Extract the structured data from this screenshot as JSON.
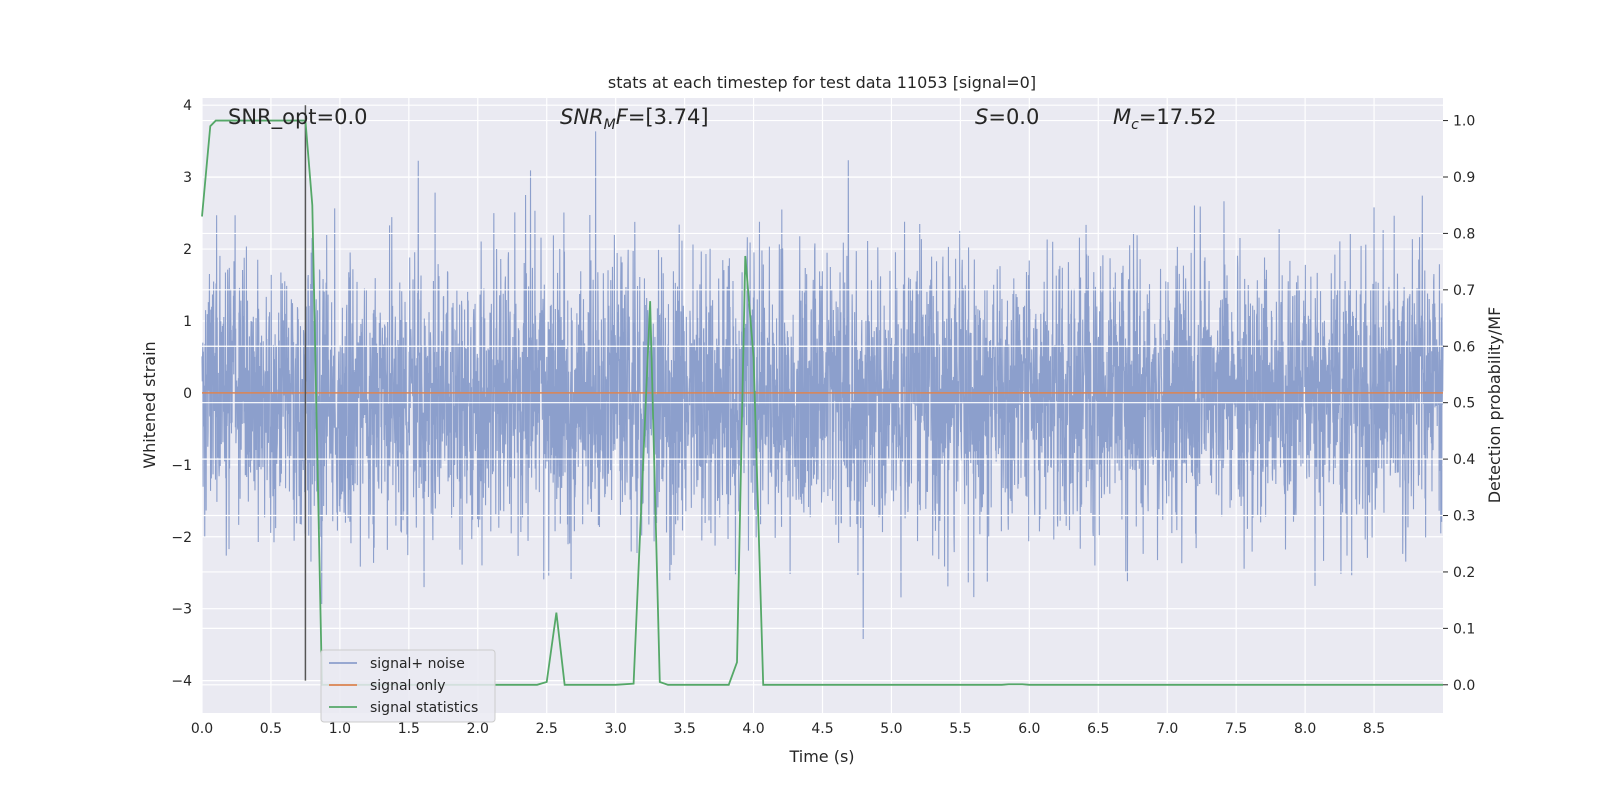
{
  "chart_data": {
    "type": "line",
    "title": "stats at each timestep for test data 11053 [signal=0]",
    "xlabel": "Time (s)",
    "ylabel": "Whitened strain",
    "ylabel_right": "Detection probability/MF",
    "xlim": [
      0.0,
      9.0
    ],
    "ylim": [
      -4.45,
      4.1
    ],
    "ylim_right": [
      -0.05,
      1.04
    ],
    "xticks": [
      "0.0",
      "0.5",
      "1.0",
      "1.5",
      "2.0",
      "2.5",
      "3.0",
      "3.5",
      "4.0",
      "4.5",
      "5.0",
      "5.5",
      "6.0",
      "6.5",
      "7.0",
      "7.5",
      "8.0",
      "8.5"
    ],
    "yticks": [
      "4",
      "3",
      "2",
      "1",
      "0",
      "−1",
      "−2",
      "−3",
      "−4"
    ],
    "yticks_right": [
      "1.0",
      "0.9",
      "0.8",
      "0.7",
      "0.6",
      "0.5",
      "0.4",
      "0.3",
      "0.2",
      "0.1",
      "0.0"
    ],
    "grid": true,
    "legend_position": "lower-left",
    "annotations": {
      "snr_opt": "SNR_opt=0.0",
      "snr_mf_italic": "SNR",
      "snr_mf_sub": "M",
      "snr_mf_italic2": "F",
      "snr_mf_value": "=[3.74]",
      "s_italic": "S",
      "s_value": "=0.0",
      "mc_italic": "M",
      "mc_sub": "c",
      "mc_value": "=17.52"
    },
    "marker_line_x": 0.75,
    "series": [
      {
        "name": "signal+ noise",
        "color": "#8c9fcc",
        "description_values": "whitened noise, roughly within ±2 with spikes to ±4",
        "seed": 11053,
        "points": 4500
      },
      {
        "name": "signal only",
        "color": "#dd8452",
        "x": [
          0.0,
          9.0
        ],
        "y": [
          0.0,
          0.0
        ]
      },
      {
        "name": "signal statistics",
        "color": "#55a868",
        "axis": "right",
        "x": [
          0.0,
          0.06,
          0.1,
          0.2,
          0.3,
          0.4,
          0.5,
          0.6,
          0.7,
          0.75,
          0.8,
          0.87,
          0.94,
          1.0,
          1.5,
          2.0,
          2.43,
          2.5,
          2.57,
          2.63,
          2.7,
          3.0,
          3.13,
          3.25,
          3.32,
          3.38,
          3.45,
          3.82,
          3.88,
          3.94,
          4.0,
          4.07,
          4.5,
          5.0,
          5.5,
          5.8,
          5.85,
          5.95,
          6.0,
          7.0,
          8.0,
          9.0
        ],
        "y": [
          0.83,
          0.99,
          1.0,
          1.0,
          1.0,
          1.0,
          1.0,
          1.0,
          1.0,
          1.0,
          0.85,
          0.0,
          0.0,
          0.0,
          0.0,
          0.0,
          0.0,
          0.005,
          0.128,
          0.0,
          0.0,
          0.0,
          0.002,
          0.68,
          0.005,
          0.0,
          0.0,
          0.0,
          0.04,
          0.76,
          0.58,
          0.0,
          0.0,
          0.0,
          0.0,
          0.0,
          0.001,
          0.001,
          0.0,
          0.0,
          0.0,
          0.0
        ]
      }
    ]
  }
}
